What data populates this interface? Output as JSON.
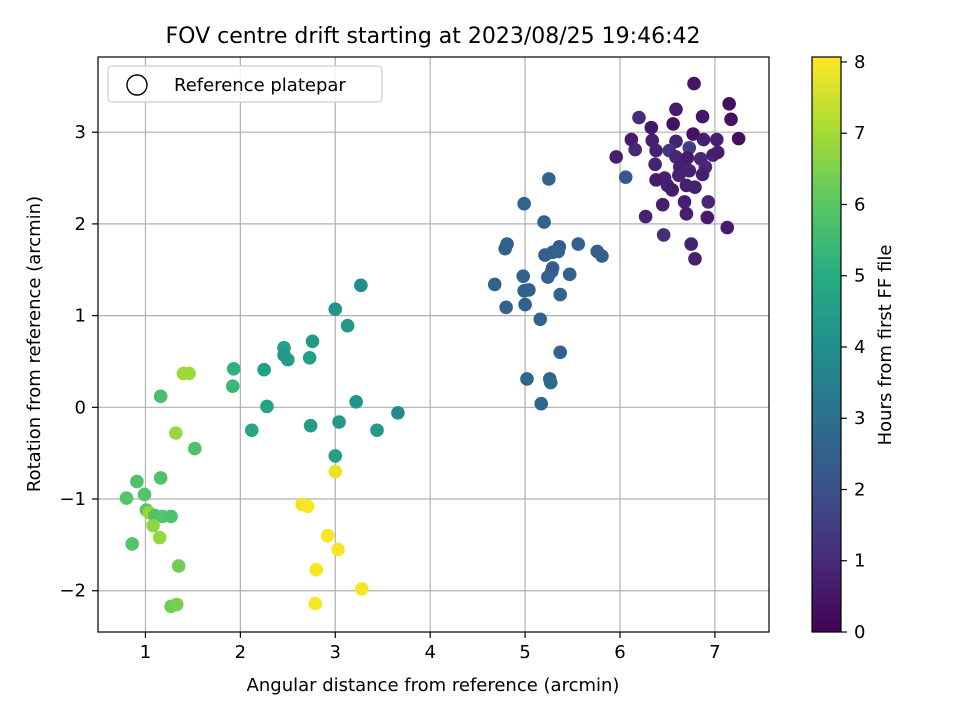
{
  "chart_data": {
    "type": "scatter",
    "title": "FOV centre drift starting at 2023/08/25 19:46:42",
    "xlabel": "Angular distance from reference (arcmin)",
    "ylabel": "Rotation from reference (arcmin)",
    "xlim": [
      0.5,
      7.57
    ],
    "ylim": [
      -2.45,
      3.82
    ],
    "xticks": [
      "1",
      "2",
      "3",
      "4",
      "5",
      "6",
      "7"
    ],
    "yticks": [
      "−2",
      "−1",
      "0",
      "1",
      "2",
      "3"
    ],
    "grid": true,
    "legend": {
      "position": "top-left",
      "entries": [
        "Reference platepar"
      ]
    },
    "colorbar": {
      "label": "Hours from first FF file",
      "range": [
        0,
        8.07
      ],
      "ticks": [
        "0",
        "1",
        "2",
        "3",
        "4",
        "5",
        "6",
        "7",
        "8"
      ],
      "colormap": "viridis"
    },
    "points": [
      {
        "x": 6.78,
        "y": 3.53,
        "h": 0.5
      },
      {
        "x": 6.59,
        "y": 3.25,
        "h": 0.6
      },
      {
        "x": 6.2,
        "y": 3.16,
        "h": 1.0
      },
      {
        "x": 6.87,
        "y": 3.17,
        "h": 0.5
      },
      {
        "x": 7.15,
        "y": 3.31,
        "h": 0.3
      },
      {
        "x": 7.17,
        "y": 3.14,
        "h": 0.4
      },
      {
        "x": 6.33,
        "y": 3.05,
        "h": 0.5
      },
      {
        "x": 6.56,
        "y": 3.09,
        "h": 0.4
      },
      {
        "x": 6.77,
        "y": 2.98,
        "h": 0.4
      },
      {
        "x": 7.25,
        "y": 2.93,
        "h": 0.3
      },
      {
        "x": 6.12,
        "y": 2.92,
        "h": 0.6
      },
      {
        "x": 6.34,
        "y": 2.91,
        "h": 0.7
      },
      {
        "x": 6.59,
        "y": 2.9,
        "h": 0.8
      },
      {
        "x": 6.88,
        "y": 2.92,
        "h": 0.7
      },
      {
        "x": 7.02,
        "y": 2.92,
        "h": 0.7
      },
      {
        "x": 6.16,
        "y": 2.81,
        "h": 0.9
      },
      {
        "x": 6.38,
        "y": 2.8,
        "h": 0.8
      },
      {
        "x": 6.52,
        "y": 2.8,
        "h": 1.2
      },
      {
        "x": 6.73,
        "y": 2.83,
        "h": 1.5
      },
      {
        "x": 5.96,
        "y": 2.73,
        "h": 0.7
      },
      {
        "x": 6.59,
        "y": 2.73,
        "h": 0.9
      },
      {
        "x": 6.71,
        "y": 2.72,
        "h": 0.6
      },
      {
        "x": 6.85,
        "y": 2.71,
        "h": 0.9
      },
      {
        "x": 6.98,
        "y": 2.75,
        "h": 0.8
      },
      {
        "x": 7.03,
        "y": 2.78,
        "h": 0.7
      },
      {
        "x": 6.37,
        "y": 2.65,
        "h": 0.8
      },
      {
        "x": 6.63,
        "y": 2.62,
        "h": 0.7
      },
      {
        "x": 6.73,
        "y": 2.58,
        "h": 0.8
      },
      {
        "x": 6.9,
        "y": 2.62,
        "h": 0.9
      },
      {
        "x": 6.06,
        "y": 2.51,
        "h": 2.2
      },
      {
        "x": 6.47,
        "y": 2.5,
        "h": 0.8
      },
      {
        "x": 6.38,
        "y": 2.48,
        "h": 0.6
      },
      {
        "x": 6.62,
        "y": 2.53,
        "h": 0.8
      },
      {
        "x": 6.87,
        "y": 2.54,
        "h": 0.7
      },
      {
        "x": 6.5,
        "y": 2.42,
        "h": 0.8
      },
      {
        "x": 6.7,
        "y": 2.42,
        "h": 0.7
      },
      {
        "x": 6.79,
        "y": 2.4,
        "h": 0.8
      },
      {
        "x": 6.55,
        "y": 2.37,
        "h": 0.6
      },
      {
        "x": 6.68,
        "y": 2.24,
        "h": 0.7
      },
      {
        "x": 6.93,
        "y": 2.24,
        "h": 0.9
      },
      {
        "x": 6.45,
        "y": 2.21,
        "h": 0.7
      },
      {
        "x": 6.7,
        "y": 2.11,
        "h": 0.7
      },
      {
        "x": 6.27,
        "y": 2.08,
        "h": 0.8
      },
      {
        "x": 6.92,
        "y": 2.07,
        "h": 0.6
      },
      {
        "x": 7.13,
        "y": 1.96,
        "h": 0.6
      },
      {
        "x": 6.46,
        "y": 1.88,
        "h": 1.0
      },
      {
        "x": 6.75,
        "y": 1.78,
        "h": 0.8
      },
      {
        "x": 6.79,
        "y": 1.62,
        "h": 0.7
      },
      {
        "x": 5.25,
        "y": 2.49,
        "h": 2.7
      },
      {
        "x": 4.99,
        "y": 2.22,
        "h": 2.6
      },
      {
        "x": 5.2,
        "y": 2.02,
        "h": 2.5
      },
      {
        "x": 4.81,
        "y": 1.78,
        "h": 2.5
      },
      {
        "x": 4.79,
        "y": 1.73,
        "h": 2.5
      },
      {
        "x": 5.36,
        "y": 1.75,
        "h": 2.4
      },
      {
        "x": 5.56,
        "y": 1.78,
        "h": 2.5
      },
      {
        "x": 5.29,
        "y": 1.69,
        "h": 2.4
      },
      {
        "x": 5.35,
        "y": 1.7,
        "h": 2.6
      },
      {
        "x": 5.76,
        "y": 1.7,
        "h": 2.4
      },
      {
        "x": 5.21,
        "y": 1.66,
        "h": 2.5
      },
      {
        "x": 5.81,
        "y": 1.65,
        "h": 2.5
      },
      {
        "x": 5.29,
        "y": 1.52,
        "h": 2.6
      },
      {
        "x": 5.28,
        "y": 1.48,
        "h": 2.3
      },
      {
        "x": 5.24,
        "y": 1.42,
        "h": 2.6
      },
      {
        "x": 5.47,
        "y": 1.45,
        "h": 2.5
      },
      {
        "x": 4.98,
        "y": 1.43,
        "h": 2.5
      },
      {
        "x": 4.68,
        "y": 1.34,
        "h": 2.6
      },
      {
        "x": 4.99,
        "y": 1.27,
        "h": 2.6
      },
      {
        "x": 5.04,
        "y": 1.28,
        "h": 2.5
      },
      {
        "x": 5.37,
        "y": 1.23,
        "h": 2.6
      },
      {
        "x": 4.8,
        "y": 1.09,
        "h": 2.6
      },
      {
        "x": 5.0,
        "y": 1.12,
        "h": 2.5
      },
      {
        "x": 5.16,
        "y": 0.96,
        "h": 2.6
      },
      {
        "x": 5.37,
        "y": 0.6,
        "h": 2.6
      },
      {
        "x": 5.02,
        "y": 0.31,
        "h": 2.7
      },
      {
        "x": 5.26,
        "y": 0.31,
        "h": 2.6
      },
      {
        "x": 5.27,
        "y": 0.27,
        "h": 2.8
      },
      {
        "x": 5.17,
        "y": 0.04,
        "h": 2.7
      },
      {
        "x": 3.27,
        "y": 1.33,
        "h": 4.0
      },
      {
        "x": 3.0,
        "y": 1.07,
        "h": 4.2
      },
      {
        "x": 3.13,
        "y": 0.89,
        "h": 4.3
      },
      {
        "x": 2.76,
        "y": 0.72,
        "h": 4.4
      },
      {
        "x": 2.46,
        "y": 0.65,
        "h": 4.6
      },
      {
        "x": 2.46,
        "y": 0.57,
        "h": 4.4
      },
      {
        "x": 2.5,
        "y": 0.52,
        "h": 4.4
      },
      {
        "x": 2.73,
        "y": 0.54,
        "h": 4.6
      },
      {
        "x": 1.93,
        "y": 0.42,
        "h": 5.2
      },
      {
        "x": 2.25,
        "y": 0.41,
        "h": 4.6
      },
      {
        "x": 1.92,
        "y": 0.23,
        "h": 5.4
      },
      {
        "x": 3.22,
        "y": 0.06,
        "h": 4.2
      },
      {
        "x": 2.28,
        "y": 0.01,
        "h": 4.7
      },
      {
        "x": 3.66,
        "y": -0.06,
        "h": 3.9
      },
      {
        "x": 3.04,
        "y": -0.16,
        "h": 4.3
      },
      {
        "x": 2.74,
        "y": -0.2,
        "h": 4.5
      },
      {
        "x": 2.12,
        "y": -0.25,
        "h": 4.8
      },
      {
        "x": 3.44,
        "y": -0.25,
        "h": 4.4
      },
      {
        "x": 3.0,
        "y": -0.53,
        "h": 4.6
      },
      {
        "x": 1.16,
        "y": 0.12,
        "h": 5.7
      },
      {
        "x": 1.4,
        "y": 0.37,
        "h": 6.9
      },
      {
        "x": 1.46,
        "y": 0.37,
        "h": 6.9
      },
      {
        "x": 1.32,
        "y": -0.28,
        "h": 6.8
      },
      {
        "x": 1.52,
        "y": -0.45,
        "h": 5.8
      },
      {
        "x": 0.91,
        "y": -0.81,
        "h": 5.8
      },
      {
        "x": 1.16,
        "y": -0.77,
        "h": 5.8
      },
      {
        "x": 0.8,
        "y": -0.99,
        "h": 5.9
      },
      {
        "x": 0.99,
        "y": -0.95,
        "h": 5.9
      },
      {
        "x": 1.01,
        "y": -1.12,
        "h": 5.9
      },
      {
        "x": 1.04,
        "y": -1.15,
        "h": 6.8
      },
      {
        "x": 1.1,
        "y": -1.18,
        "h": 5.8
      },
      {
        "x": 1.18,
        "y": -1.19,
        "h": 5.9
      },
      {
        "x": 1.27,
        "y": -1.19,
        "h": 5.8
      },
      {
        "x": 1.08,
        "y": -1.29,
        "h": 6.7
      },
      {
        "x": 1.15,
        "y": -1.42,
        "h": 6.8
      },
      {
        "x": 0.86,
        "y": -1.49,
        "h": 5.9
      },
      {
        "x": 1.35,
        "y": -1.73,
        "h": 6.3
      },
      {
        "x": 1.27,
        "y": -2.17,
        "h": 6.3
      },
      {
        "x": 1.33,
        "y": -2.15,
        "h": 6.4
      },
      {
        "x": 3.0,
        "y": -0.7,
        "h": 7.8
      },
      {
        "x": 2.65,
        "y": -1.06,
        "h": 7.9
      },
      {
        "x": 2.71,
        "y": -1.08,
        "h": 8.0
      },
      {
        "x": 2.92,
        "y": -1.4,
        "h": 8.0
      },
      {
        "x": 3.03,
        "y": -1.55,
        "h": 8.0
      },
      {
        "x": 2.8,
        "y": -1.77,
        "h": 8.0
      },
      {
        "x": 3.28,
        "y": -1.98,
        "h": 8.0
      },
      {
        "x": 2.79,
        "y": -2.14,
        "h": 8.0
      }
    ]
  }
}
